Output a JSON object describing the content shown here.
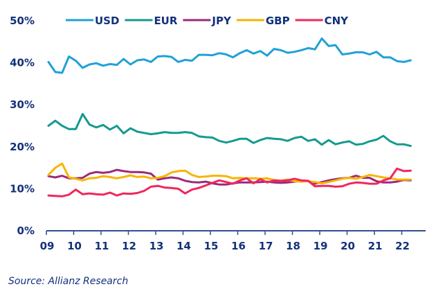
{
  "chart_data": {
    "type": "line",
    "title": "",
    "xlabel": "",
    "ylabel": "",
    "ylim": [
      0,
      50
    ],
    "yticks": [
      "0%",
      "10%",
      "20%",
      "30%",
      "40%",
      "50%"
    ],
    "ytick_values": [
      0,
      10,
      20,
      30,
      40,
      50
    ],
    "xticks": [
      "09",
      "10",
      "11",
      "12",
      "13",
      "14",
      "15",
      "16",
      "17",
      "18",
      "19",
      "20",
      "21",
      "22"
    ],
    "xlim": [
      2009,
      2022.9
    ],
    "grid": false,
    "legend_position": "top",
    "x_start": 2009.0,
    "x_step": 0.25,
    "series": [
      {
        "name": "USD",
        "color": "#1fa1d8",
        "values": [
          40.2,
          37.8,
          37.6,
          41.5,
          40.5,
          38.8,
          39.6,
          39.9,
          39.3,
          39.7,
          39.5,
          40.9,
          39.6,
          40.6,
          40.8,
          40.2,
          41.5,
          41.6,
          41.4,
          40.2,
          40.7,
          40.5,
          41.9,
          41.9,
          41.8,
          42.3,
          42.0,
          41.3,
          42.3,
          43.0,
          42.2,
          42.8,
          41.7,
          43.3,
          43.0,
          42.4,
          42.6,
          43.0,
          43.5,
          43.2,
          45.8,
          44.0,
          44.2,
          42.0,
          42.2,
          42.5,
          42.5,
          42.0,
          42.6,
          41.3,
          41.3,
          40.4,
          40.2,
          40.6
        ]
      },
      {
        "name": "EUR",
        "color": "#149a8f",
        "values": [
          25.0,
          26.2,
          25.0,
          24.2,
          24.2,
          27.8,
          25.3,
          24.6,
          25.2,
          24.1,
          25.0,
          23.2,
          24.4,
          23.6,
          23.3,
          23.0,
          23.2,
          23.5,
          23.3,
          23.3,
          23.5,
          23.3,
          22.5,
          22.3,
          22.2,
          21.4,
          21.0,
          21.4,
          21.9,
          21.9,
          20.9,
          21.6,
          22.1,
          21.9,
          21.8,
          21.4,
          22.1,
          22.4,
          21.4,
          21.8,
          20.5,
          21.6,
          20.6,
          21.0,
          21.3,
          20.5,
          20.7,
          21.3,
          21.7,
          22.6,
          21.3,
          20.6,
          20.6,
          20.2
        ]
      },
      {
        "name": "JPY",
        "color": "#9b2a7a",
        "values": [
          13.0,
          12.7,
          13.1,
          12.5,
          12.5,
          12.6,
          13.6,
          14.0,
          13.8,
          14.0,
          14.5,
          14.2,
          14.0,
          14.0,
          13.9,
          13.6,
          12.2,
          12.5,
          12.7,
          12.5,
          11.9,
          11.6,
          11.5,
          11.7,
          11.3,
          11.0,
          11.0,
          11.3,
          11.5,
          11.5,
          11.5,
          11.6,
          11.7,
          11.5,
          11.4,
          11.5,
          11.7,
          11.9,
          11.8,
          11.2,
          11.6,
          12.0,
          12.3,
          12.5,
          12.6,
          13.1,
          12.6,
          12.6,
          11.8,
          11.5,
          11.5,
          11.7,
          12.1,
          12.0
        ]
      },
      {
        "name": "GBP",
        "color": "#f7b500",
        "values": [
          13.3,
          15.0,
          16.0,
          12.7,
          12.4,
          12.0,
          12.5,
          12.6,
          13.0,
          12.8,
          12.5,
          12.8,
          13.2,
          12.8,
          12.9,
          12.5,
          12.6,
          13.0,
          13.9,
          14.2,
          14.3,
          13.3,
          12.8,
          12.9,
          13.1,
          13.1,
          13.0,
          12.5,
          12.6,
          12.5,
          12.5,
          12.4,
          12.5,
          12.1,
          11.9,
          12.2,
          11.8,
          11.7,
          11.8,
          11.6,
          11.3,
          11.6,
          12.0,
          12.4,
          12.6,
          12.4,
          12.8,
          13.3,
          13.0,
          12.7,
          12.5,
          12.2,
          12.2,
          12.2
        ]
      },
      {
        "name": "CNY",
        "color": "#f0265d",
        "values": [
          8.4,
          8.3,
          8.2,
          8.6,
          9.8,
          8.7,
          8.9,
          8.7,
          8.6,
          9.1,
          8.4,
          8.9,
          8.8,
          9.0,
          9.5,
          10.5,
          10.7,
          10.3,
          10.2,
          10.0,
          8.9,
          9.8,
          10.2,
          10.8,
          11.4,
          12.0,
          11.6,
          11.2,
          12.0,
          12.5,
          11.3,
          12.3,
          11.5,
          12.0,
          11.9,
          12.0,
          12.4,
          12.0,
          11.9,
          10.6,
          10.7,
          10.7,
          10.5,
          10.6,
          11.2,
          11.5,
          11.4,
          11.2,
          11.2,
          12.0,
          12.5,
          14.8,
          14.2,
          14.3
        ]
      }
    ]
  },
  "source": "Source: Allianz Research"
}
